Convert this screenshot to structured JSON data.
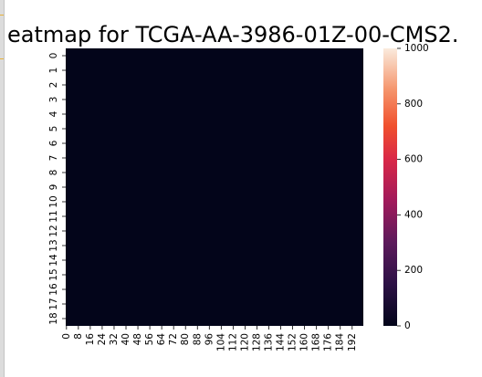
{
  "chart_data": {
    "type": "heatmap",
    "title": "eatmap for TCGA-AA-3986-01Z-00-CMS2.",
    "xlabel": "",
    "ylabel": "",
    "rows": 19,
    "cols": 200,
    "y_tick_labels": [
      "0",
      "1",
      "2",
      "3",
      "4",
      "5",
      "6",
      "7",
      "8",
      "9",
      "10",
      "11",
      "12",
      "13",
      "14",
      "15",
      "16",
      "17",
      "18"
    ],
    "x_tick_labels": [
      "0",
      "8",
      "16",
      "24",
      "32",
      "40",
      "48",
      "56",
      "64",
      "72",
      "80",
      "88",
      "96",
      "104",
      "112",
      "120",
      "128",
      "136",
      "144",
      "152",
      "160",
      "168",
      "176",
      "184",
      "192"
    ],
    "x_tick_step": 8,
    "values_note_uniform": 0,
    "colorbar": {
      "min": 0,
      "max": 1000,
      "ticks": [
        0,
        200,
        400,
        600,
        800,
        1000
      ],
      "tick_labels": [
        "0",
        "200",
        "400",
        "600",
        "800",
        "1000"
      ],
      "colormap": "rocket"
    },
    "colors": {
      "low": "#03051a",
      "high": "#faebdd"
    }
  }
}
